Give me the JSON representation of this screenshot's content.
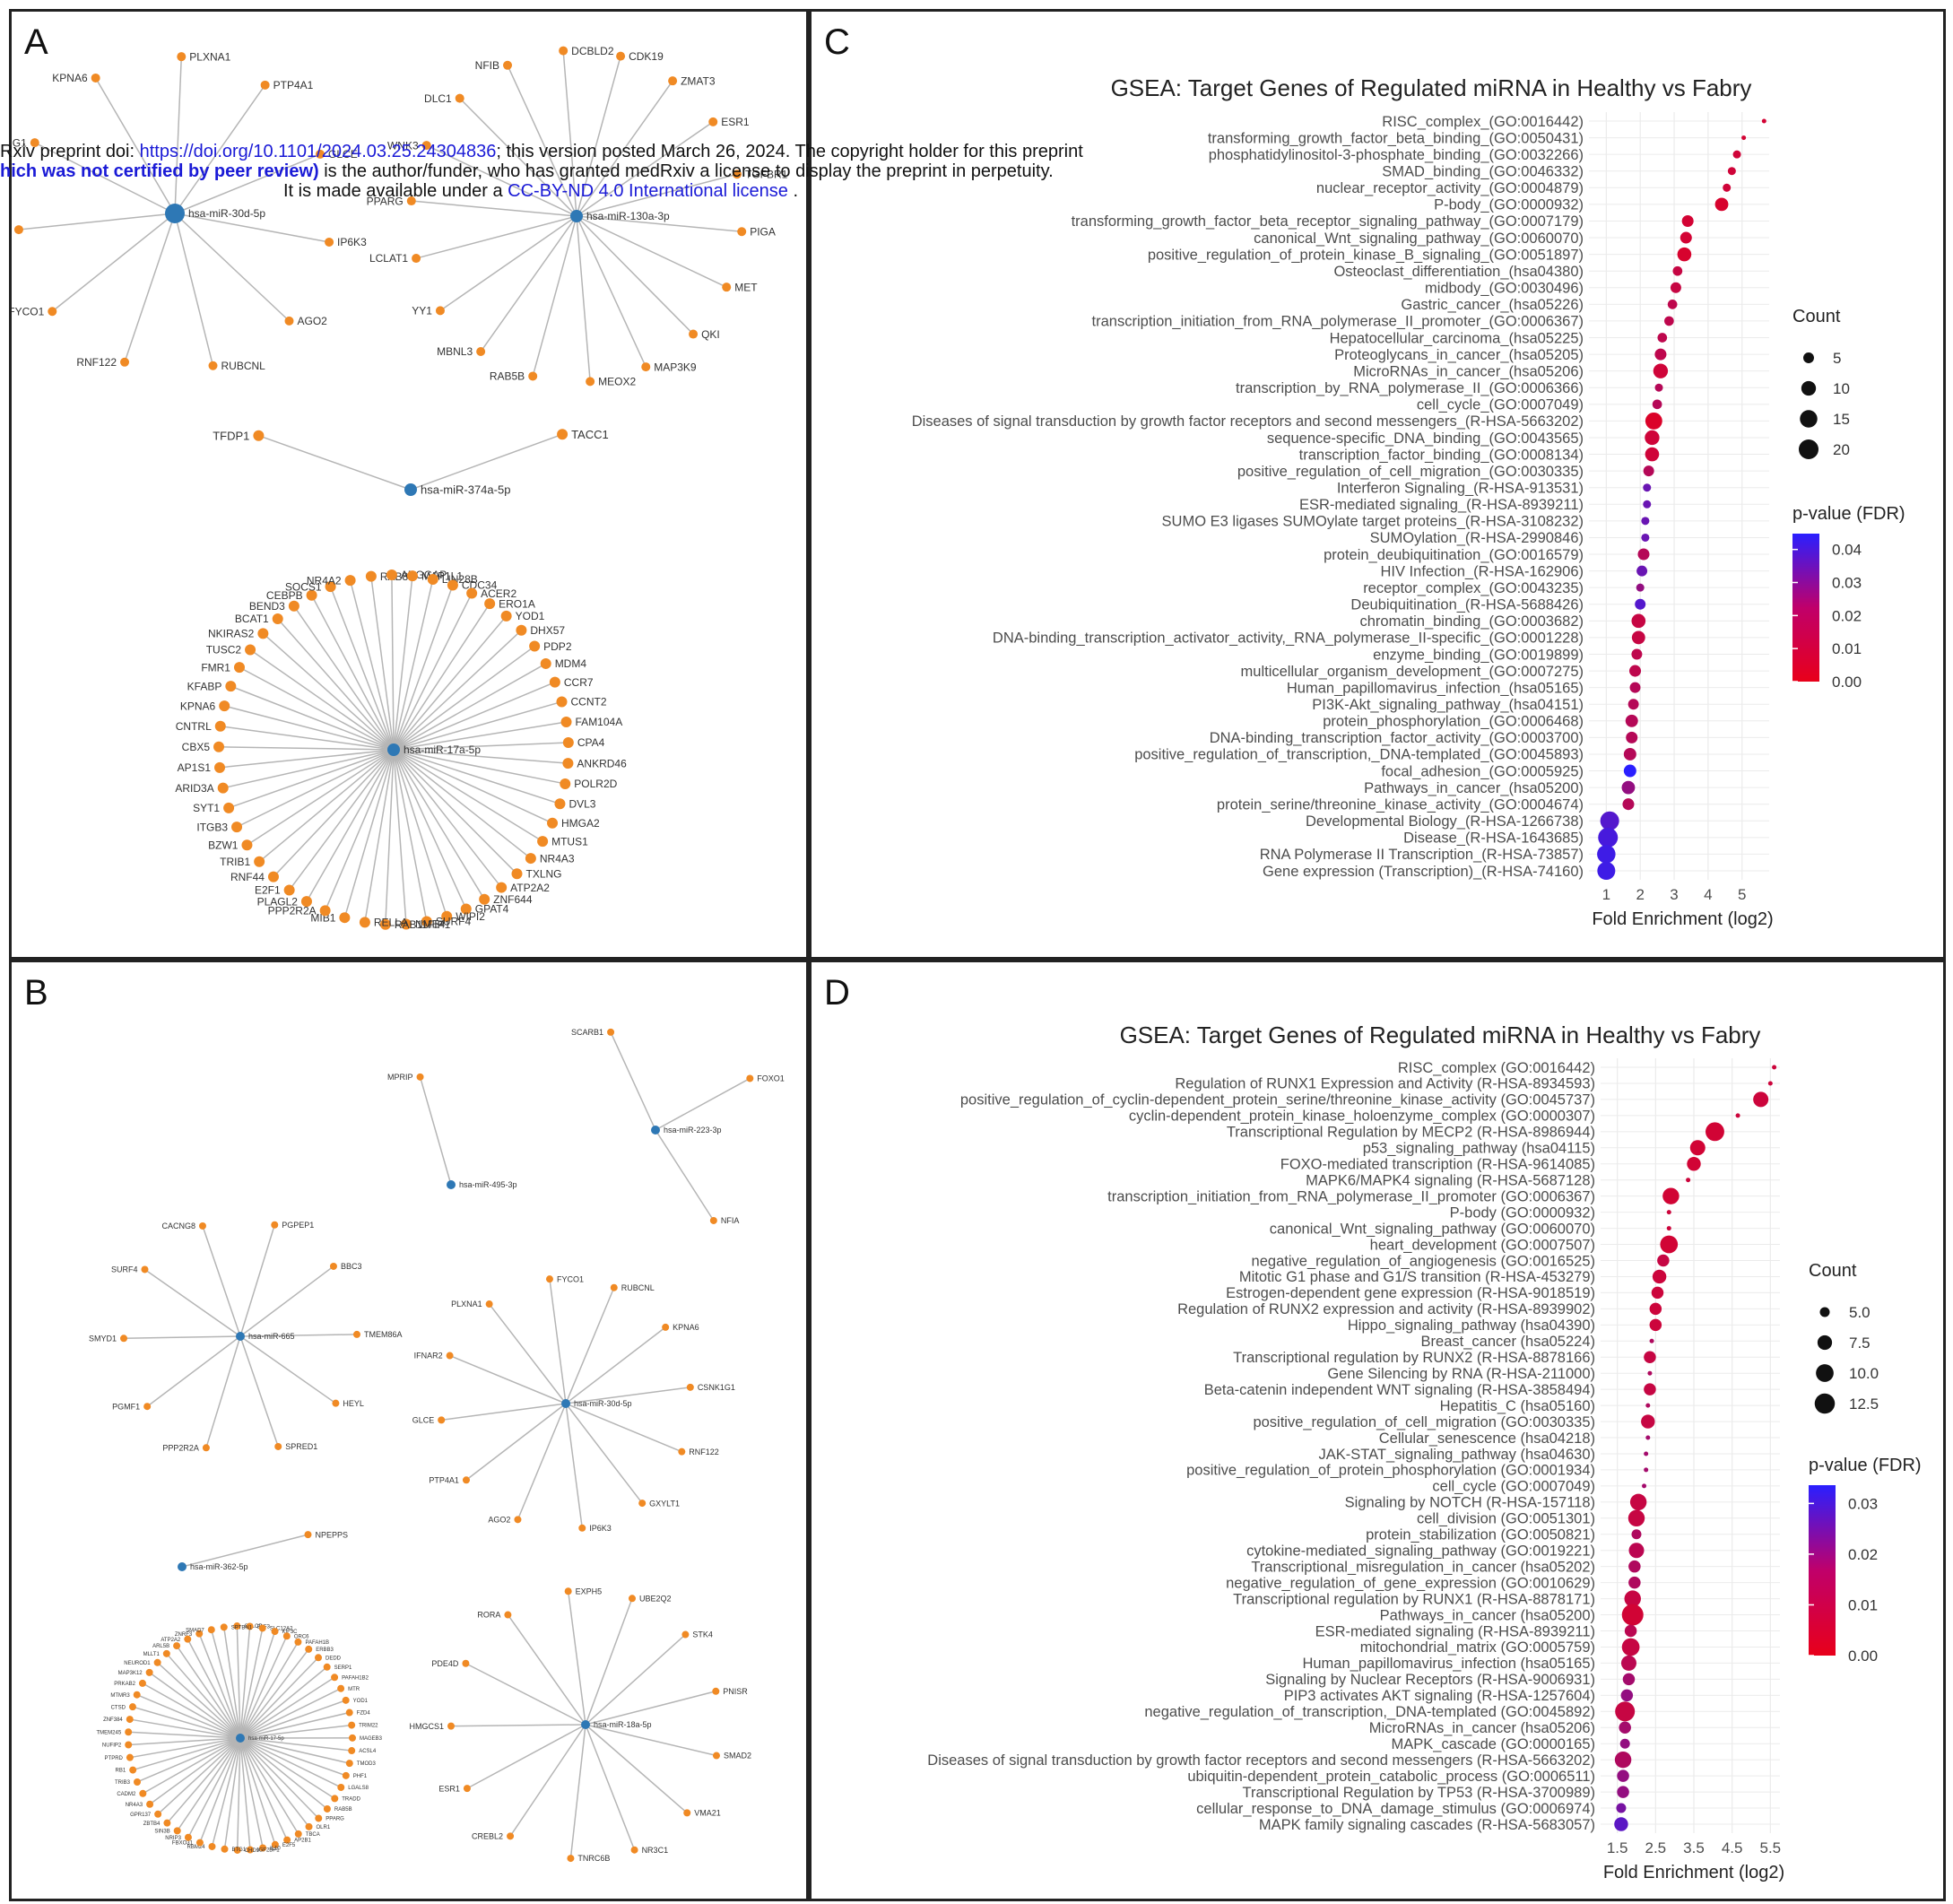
{
  "banner": {
    "line1_a": "Rxiv preprint doi: ",
    "doi": "https://doi.org/10.1101/2024.03.25.24304836",
    "line1_b": "; this version posted March 26, 2024. The copyright holder for this preprint",
    "line2_bold": "hich was not certified by peer review)",
    "line2_rest": " is the author/funder, who has granted medRxiv a license to display the preprint in perpetuity.",
    "line3_a": "It is made available under a ",
    "license": "CC-BY-ND 4.0 International license",
    "line3_b": " ."
  },
  "panels": {
    "a": "A",
    "b": "B",
    "c": "C",
    "d": "D"
  },
  "colors": {
    "hub": "#2e78b5",
    "leaf": "#f08a24",
    "edge": "#b5b5b5",
    "grid": "#ebebeb",
    "fdr_low": "#e8001a",
    "fdr_high": "#2a1fff"
  },
  "network_a": [
    {
      "hub": "hsa-miR-30d-5p",
      "leaves": [
        "KPNA6",
        "PLXNA1",
        "PTP4A1",
        "GLCE",
        "IP6K3",
        "AGO2",
        "RUBCNL",
        "RNF122",
        "FYCO1",
        "GXYLT1",
        "PPARG1"
      ]
    },
    {
      "hub": "hsa-miR-130a-3p",
      "leaves": [
        "NFIB",
        "DCBLD2",
        "CDK19",
        "ZMAT3",
        "ESR1",
        "TGFBR1",
        "PIGA",
        "MET",
        "QKI",
        "MAP3K9",
        "MEOX2",
        "RAB5B",
        "MBNL3",
        "YY1",
        "LCLAT1",
        "PPARG",
        "WNK3",
        "DLC1"
      ]
    },
    {
      "hub": "hsa-miR-374a-5p",
      "leaves": [
        "TACC1",
        "TFDP1"
      ]
    },
    {
      "hub": "hsa-miR-17a-5p",
      "leaves": [
        "RAB8B",
        "ARGGAP",
        "MAP1L1",
        "LIN28B",
        "CDC34",
        "ACER2",
        "ERO1A",
        "YOD1",
        "DHX57",
        "PDP2",
        "MDM4",
        "CCR7",
        "CCNT2",
        "FAM104A",
        "CPA4",
        "ANKRD46",
        "POLR2D",
        "DVL3",
        "HMGA2",
        "MTUS1",
        "NR4A3",
        "TXLNG",
        "ATP2A2",
        "ZNF644",
        "GPAT4",
        "WIPI2",
        "SURF4",
        "NME4",
        "RAB11FIP1",
        "RELLA",
        "MIB1",
        "PPP2R2A",
        "PLAGL2",
        "E2F1",
        "RNF44",
        "TRIB1",
        "BZW1",
        "ITGB3",
        "SYT1",
        "ARID3A",
        "AP1S1",
        "CBX5",
        "CNTRL",
        "KPNA6",
        "KFABP",
        "FMR1",
        "TUSC2",
        "NKIRAS2",
        "BCAT1",
        "BEND3",
        "CEBPB",
        "SOCS1",
        "NR4A2"
      ]
    }
  ],
  "network_b": [
    {
      "hub": "hsa-miR-223-3p",
      "leaves": [
        "SCARB1",
        "FOXO1",
        "NFIA"
      ]
    },
    {
      "hub": "hsa-miR-495-3p",
      "leaves": [
        "MPRIP"
      ]
    },
    {
      "hub": "hsa-miR-665",
      "leaves": [
        "CACNG8",
        "PGPEP1",
        "BBC3",
        "TMEM86A",
        "HEYL",
        "SPRED1",
        "PPP2R2A",
        "PGMF1",
        "SMYD1",
        "SURF4"
      ]
    },
    {
      "hub": "hsa-miR-30d-5p",
      "leaves": [
        "FYCO1",
        "RUBCNL",
        "KPNA6",
        "CSNK1G1",
        "RNF122",
        "GXYLT1",
        "IP6K3",
        "AGO2",
        "PTP4A1",
        "GLCE",
        "IFNAR2",
        "PLXNA1"
      ]
    },
    {
      "hub": "hsa-miR-362-5p",
      "leaves": [
        "NPEPPS"
      ]
    },
    {
      "hub": "hsa-miR-18a-5p",
      "leaves": [
        "EXPH5",
        "UBE2Q2",
        "STK4",
        "PNISR",
        "SMAD2",
        "VMA21",
        "NR3C1",
        "TNRC6B",
        "CREBL2",
        "ESR1",
        "HMGCS1",
        "PDE4D",
        "RORA"
      ]
    },
    {
      "hub": "hsa-miR-17-5p",
      "leaves": [
        "CALCR",
        "ELF3",
        "SLC12A2",
        "KIF3C",
        "ORC6",
        "PAFAH1B",
        "ERBB3",
        "DEDD",
        "SERP1",
        "PAFAH1B2",
        "MTR",
        "YOD1",
        "FZD4",
        "TRIM22",
        "MAGEB3",
        "ACSL4",
        "TMOD3",
        "PHF1",
        "LGALS8",
        "TRADD",
        "RAB5B",
        "PPARG",
        "OLR1",
        "TBCA",
        "AP2B1",
        "E2F5",
        "IL10",
        "IGF2BP1",
        "CHD9",
        "BTG1",
        "RBM24",
        "FBXO31",
        "NRIP3",
        "SIN3B",
        "ZBTB4",
        "GPR137",
        "NR4A3",
        "CADM2",
        "TRIB3",
        "RB1",
        "PTPRD",
        "NUFIP2",
        "TMEM245",
        "ZNF384",
        "CTSD",
        "MTMR3",
        "PRKAB2",
        "MAP3K12",
        "NEUROD1",
        "MLLT1",
        "ARL5B",
        "ATP2A2",
        "ZNRF3",
        "SMAD7",
        "SPTBN1"
      ]
    }
  ],
  "chart_data": [
    {
      "type": "scatter",
      "title": "GSEA: Target Genes of Regulated miRNA in Healthy vs Fabry",
      "xlabel": "Fold Enrichment (log2)",
      "xticks": [
        1,
        2,
        3,
        4,
        5
      ],
      "xlim": [
        0.7,
        5.8
      ],
      "legend_size": {
        "title": "Count",
        "labels": [
          "5",
          "10",
          "15",
          "20"
        ],
        "values": [
          5,
          10,
          15,
          20
        ]
      },
      "legend_color": {
        "title": "p-value (FDR)",
        "labels": [
          "0.04",
          "0.03",
          "0.02",
          "0.01",
          "0.00"
        ],
        "values": [
          0.04,
          0.03,
          0.02,
          0.01,
          0.0
        ]
      },
      "terms": [
        "RISC_complex_(GO:0016442)",
        "transforming_growth_factor_beta_binding_(GO:0050431)",
        "phosphatidylinositol-3-phosphate_binding_(GO:0032266)",
        "SMAD_binding_(GO:0046332)",
        "nuclear_receptor_activity_(GO:0004879)",
        "P-body_(GO:0000932)",
        "transforming_growth_factor_beta_receptor_signaling_pathway_(GO:0007179)",
        "canonical_Wnt_signaling_pathway_(GO:0060070)",
        "positive_regulation_of_protein_kinase_B_signaling_(GO:0051897)",
        "Osteoclast_differentiation_(hsa04380)",
        "midbody_(GO:0030496)",
        "Gastric_cancer_(hsa05226)",
        "transcription_initiation_from_RNA_polymerase_II_promoter_(GO:0006367)",
        "Hepatocellular_carcinoma_(hsa05225)",
        "Proteoglycans_in_cancer_(hsa05205)",
        "MicroRNAs_in_cancer_(hsa05206)",
        "transcription_by_RNA_polymerase_II_(GO:0006366)",
        "cell_cycle_(GO:0007049)",
        "Diseases of signal transduction by growth factor receptors and second messengers_(R-HSA-5663202)",
        "sequence-specific_DNA_binding_(GO:0043565)",
        "transcription_factor_binding_(GO:0008134)",
        "positive_regulation_of_cell_migration_(GO:0030335)",
        "Interferon Signaling_(R-HSA-913531)",
        "ESR-mediated signaling_(R-HSA-8939211)",
        "SUMO E3 ligases SUMOylate target proteins_(R-HSA-3108232)",
        "SUMOylation_(R-HSA-2990846)",
        "protein_deubiquitination_(GO:0016579)",
        "HIV Infection_(R-HSA-162906)",
        "receptor_complex_(GO:0043235)",
        "Deubiquitination_(R-HSA-5688426)",
        "chromatin_binding_(GO:0003682)",
        "DNA-binding_transcription_activator_activity,_RNA_polymerase_II-specific_(GO:0001228)",
        "enzyme_binding_(GO:0019899)",
        "multicellular_organism_development_(GO:0007275)",
        "Human_papillomavirus_infection_(hsa05165)",
        "PI3K-Akt_signaling_pathway_(hsa04151)",
        "protein_phosphorylation_(GO:0006468)",
        "DNA-binding_transcription_factor_activity_(GO:0003700)",
        "positive_regulation_of_transcription,_DNA-templated_(GO:0045893)",
        "focal_adhesion_(GO:0005925)",
        "Pathways_in_cancer_(hsa05200)",
        "protein_serine/threonine_kinase_activity_(GO:0004674)",
        "Developmental Biology_(R-HSA-1266738)",
        "Disease_(R-HSA-1643685)",
        "RNA Polymerase II Transcription_(R-HSA-73857)",
        "Gene expression (Transcription)_(R-HSA-74160)"
      ],
      "x": [
        5.65,
        5.05,
        4.85,
        4.7,
        4.55,
        4.4,
        3.4,
        3.35,
        3.3,
        3.1,
        3.05,
        2.95,
        2.85,
        2.65,
        2.6,
        2.6,
        2.55,
        2.5,
        2.4,
        2.35,
        2.35,
        2.25,
        2.2,
        2.2,
        2.15,
        2.15,
        2.1,
        2.05,
        2.0,
        2.0,
        1.95,
        1.95,
        1.9,
        1.85,
        1.85,
        1.8,
        1.75,
        1.75,
        1.7,
        1.7,
        1.65,
        1.65,
        1.1,
        1.05,
        1.0,
        1.0
      ],
      "count": [
        2,
        2,
        3,
        3,
        3,
        8,
        6,
        6,
        9,
        4,
        5,
        4,
        4,
        4,
        6,
        10,
        3,
        4,
        14,
        10,
        9,
        5,
        3,
        3,
        3,
        3,
        6,
        5,
        3,
        5,
        9,
        8,
        5,
        6,
        5,
        5,
        7,
        6,
        7,
        7,
        8,
        6,
        18,
        20,
        17,
        16
      ],
      "fdr": [
        0.005,
        0.005,
        0.006,
        0.006,
        0.006,
        0.004,
        0.005,
        0.005,
        0.004,
        0.008,
        0.008,
        0.01,
        0.01,
        0.01,
        0.01,
        0.006,
        0.012,
        0.012,
        0.003,
        0.006,
        0.006,
        0.012,
        0.03,
        0.03,
        0.03,
        0.03,
        0.012,
        0.03,
        0.02,
        0.035,
        0.008,
        0.008,
        0.01,
        0.01,
        0.012,
        0.012,
        0.012,
        0.012,
        0.012,
        0.045,
        0.02,
        0.012,
        0.035,
        0.038,
        0.04,
        0.04
      ]
    },
    {
      "type": "scatter",
      "title": "GSEA: Target Genes of Regulated miRNA in Healthy vs Fabry",
      "xlabel": "Fold Enrichment (log2)",
      "xticks": [
        1.5,
        2.5,
        3.5,
        4.5,
        5.5
      ],
      "xlim": [
        1.25,
        5.75
      ],
      "legend_size": {
        "title": "Count",
        "labels": [
          "5.0",
          "7.5",
          "10.0",
          "12.5"
        ],
        "values": [
          5,
          7.5,
          10,
          12.5
        ]
      },
      "legend_color": {
        "title": "p-value (FDR)",
        "labels": [
          "0.03",
          "0.02",
          "0.01",
          "0.00"
        ],
        "values": [
          0.03,
          0.02,
          0.01,
          0.0
        ]
      },
      "terms": [
        "RISC_complex (GO:0016442)",
        "Regulation of RUNX1 Expression and Activity (R-HSA-8934593)",
        "positive_regulation_of_cyclin-dependent_protein_serine/threonine_kinase_activity (GO:0045737)",
        "cyclin-dependent_protein_kinase_holoenzyme_complex (GO:0000307)",
        "Transcriptional Regulation by MECP2 (R-HSA-8986944)",
        "p53_signaling_pathway (hsa04115)",
        "FOXO-mediated transcription (R-HSA-9614085)",
        "MAPK6/MAPK4 signaling (R-HSA-5687128)",
        "transcription_initiation_from_RNA_polymerase_II_promoter (GO:0006367)",
        "P-body (GO:0000932)",
        "canonical_Wnt_signaling_pathway (GO:0060070)",
        "heart_development (GO:0007507)",
        "negative_regulation_of_angiogenesis (GO:0016525)",
        "Mitotic G1 phase and G1/S transition (R-HSA-453279)",
        "Estrogen-dependent gene expression (R-HSA-9018519)",
        "Regulation of RUNX2 expression and activity (R-HSA-8939902)",
        "Hippo_signaling_pathway (hsa04390)",
        "Breast_cancer (hsa05224)",
        "Transcriptional regulation by RUNX2 (R-HSA-8878166)",
        "Gene Silencing by RNA (R-HSA-211000)",
        "Beta-catenin independent WNT signaling (R-HSA-3858494)",
        "Hepatitis_C (hsa05160)",
        "positive_regulation_of_cell_migration (GO:0030335)",
        "Cellular_senescence (hsa04218)",
        "JAK-STAT_signaling_pathway (hsa04630)",
        "positive_regulation_of_protein_phosphorylation (GO:0001934)",
        "cell_cycle (GO:0007049)",
        "Signaling by NOTCH (R-HSA-157118)",
        "cell_division (GO:0051301)",
        "protein_stabilization (GO:0050821)",
        "cytokine-mediated_signaling_pathway (GO:0019221)",
        "Transcriptional_misregulation_in_cancer (hsa05202)",
        "negative_regulation_of_gene_expression (GO:0010629)",
        "Transcriptional regulation by RUNX1 (R-HSA-8878171)",
        "Pathways_in_cancer (hsa05200)",
        "ESR-mediated signaling (R-HSA-8939211)",
        "mitochondrial_matrix (GO:0005759)",
        "Human_papillomavirus_infection (hsa05165)",
        "Signaling by Nuclear Receptors (R-HSA-9006931)",
        "PIP3 activates AKT signaling (R-HSA-1257604)",
        "negative_regulation_of_transcription,_DNA-templated (GO:0045892)",
        "MicroRNAs_in_cancer (hsa05206)",
        "MAPK_cascade (GO:0000165)",
        "Diseases of signal transduction by growth factor receptors and second messengers (R-HSA-5663202)",
        "ubiquitin-dependent_protein_catabolic_process (GO:0006511)",
        "Transcriptional Regulation by TP53 (R-HSA-3700989)",
        "cellular_response_to_DNA_damage_stimulus (GO:0006974)",
        "MAPK family signaling cascades (R-HSA-5683057)"
      ],
      "x": [
        5.6,
        5.5,
        5.25,
        4.65,
        4.05,
        3.6,
        3.5,
        3.35,
        2.9,
        2.85,
        2.85,
        2.85,
        2.7,
        2.6,
        2.55,
        2.5,
        2.5,
        2.4,
        2.35,
        2.35,
        2.35,
        2.3,
        2.3,
        2.3,
        2.25,
        2.25,
        2.2,
        2.05,
        2.0,
        2.0,
        2.0,
        1.95,
        1.95,
        1.9,
        1.9,
        1.85,
        1.85,
        1.8,
        1.8,
        1.75,
        1.7,
        1.7,
        1.7,
        1.65,
        1.65,
        1.65,
        1.6,
        1.6
      ],
      "count": [
        4,
        4,
        8,
        4,
        11,
        8,
        7,
        4,
        9,
        4,
        4,
        10,
        6,
        7,
        6,
        6,
        6,
        4,
        6,
        4,
        6,
        4,
        7,
        4,
        4,
        4,
        4,
        9,
        9,
        5,
        8,
        6,
        6,
        9,
        14,
        6,
        10,
        8,
        6,
        6,
        12,
        6,
        5,
        9,
        6,
        6,
        5,
        7
      ],
      "fdr": [
        0.005,
        0.005,
        0.005,
        0.005,
        0.004,
        0.004,
        0.004,
        0.005,
        0.004,
        0.005,
        0.005,
        0.004,
        0.006,
        0.005,
        0.005,
        0.005,
        0.005,
        0.01,
        0.006,
        0.01,
        0.006,
        0.01,
        0.006,
        0.012,
        0.012,
        0.012,
        0.012,
        0.006,
        0.006,
        0.01,
        0.008,
        0.01,
        0.01,
        0.006,
        0.004,
        0.008,
        0.006,
        0.008,
        0.012,
        0.015,
        0.006,
        0.012,
        0.015,
        0.01,
        0.015,
        0.015,
        0.02,
        0.025
      ]
    }
  ]
}
